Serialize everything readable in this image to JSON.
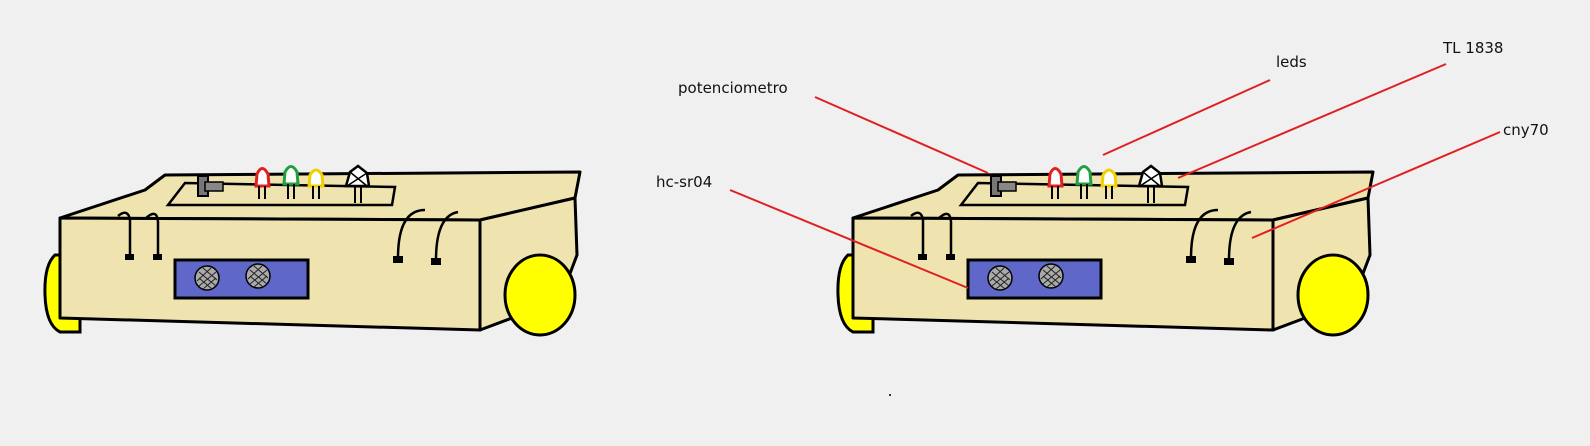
{
  "labels": {
    "potenciometro": "potenciometro",
    "leds": "leds",
    "tl1838": "TL 1838",
    "cny70": "cny70",
    "hcsr04": "hc-sr04"
  },
  "colors": {
    "background": "#f0f0f0",
    "body": "#efe3b0",
    "outline": "#000000",
    "wheel": "#ffff00",
    "sensor_module": "#5f67c8",
    "callout_line": "#e02020",
    "led_red": "#e02020",
    "led_green": "#22a040",
    "led_yellow": "#f0d000"
  }
}
